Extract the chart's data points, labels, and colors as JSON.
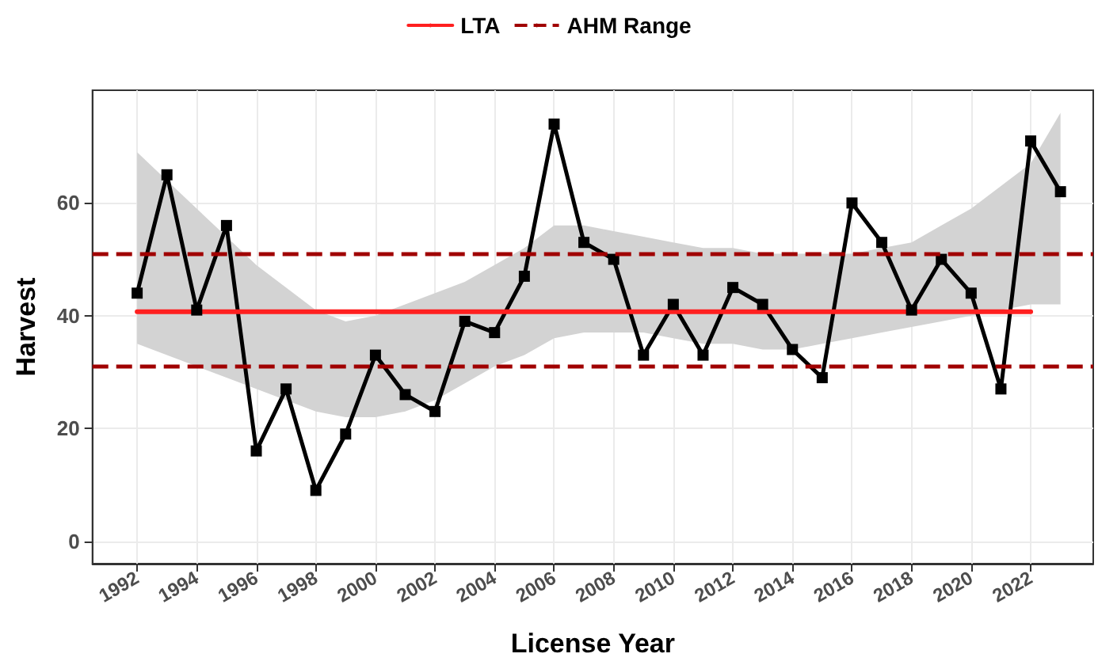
{
  "chart_data": {
    "type": "line",
    "xlabel": "License Year",
    "ylabel": "Harvest",
    "x": [
      1992,
      1993,
      1994,
      1995,
      1996,
      1997,
      1998,
      1999,
      2000,
      2001,
      2002,
      2003,
      2004,
      2005,
      2006,
      2007,
      2008,
      2009,
      2010,
      2011,
      2012,
      2013,
      2014,
      2015,
      2016,
      2017,
      2018,
      2019,
      2020,
      2021,
      2022,
      2023
    ],
    "series": [
      {
        "color": "#000000",
        "marker": "square",
        "values": [
          44,
          65,
          41,
          56,
          16,
          27,
          9,
          19,
          33,
          26,
          23,
          39,
          37,
          47,
          74,
          53,
          50,
          33,
          42,
          33,
          45,
          42,
          34,
          29,
          60,
          53,
          41,
          50,
          44,
          27,
          71,
          62
        ],
        "lower": [
          35,
          33,
          31,
          29,
          27,
          25,
          23,
          22,
          22,
          23,
          25,
          28,
          31,
          33,
          36,
          37,
          37,
          37,
          36,
          35,
          35,
          34,
          34,
          35,
          36,
          37,
          38,
          39,
          40,
          41,
          42,
          42
        ],
        "upper": [
          69,
          64,
          59,
          54,
          49,
          45,
          41,
          39,
          40,
          42,
          44,
          46,
          49,
          52,
          56,
          56,
          55,
          54,
          53,
          52,
          52,
          51,
          51,
          51,
          51,
          52,
          53,
          56,
          59,
          63,
          67,
          76
        ]
      },
      {
        "name": "LTA",
        "color": "#ff2020",
        "x": [
          1992,
          2022
        ],
        "values": [
          40.7,
          40.7
        ],
        "marker": "none"
      }
    ],
    "ref_lines": [
      {
        "axis": "y",
        "value": 51,
        "label": "AHM Range",
        "color": "#a00000",
        "line_style": "dashed"
      },
      {
        "axis": "y",
        "value": 31,
        "color": "#a00000",
        "line_style": "dashed"
      }
    ],
    "xlim": [
      1990.5,
      2024.1
    ],
    "xticks": [
      1992,
      1994,
      1996,
      1998,
      2000,
      2002,
      2004,
      2006,
      2008,
      2010,
      2012,
      2014,
      2016,
      2018,
      2020,
      2022
    ],
    "ylim": [
      -4,
      80
    ],
    "yticks": [
      0,
      20,
      40,
      60
    ],
    "grid": true,
    "legend": "top"
  }
}
